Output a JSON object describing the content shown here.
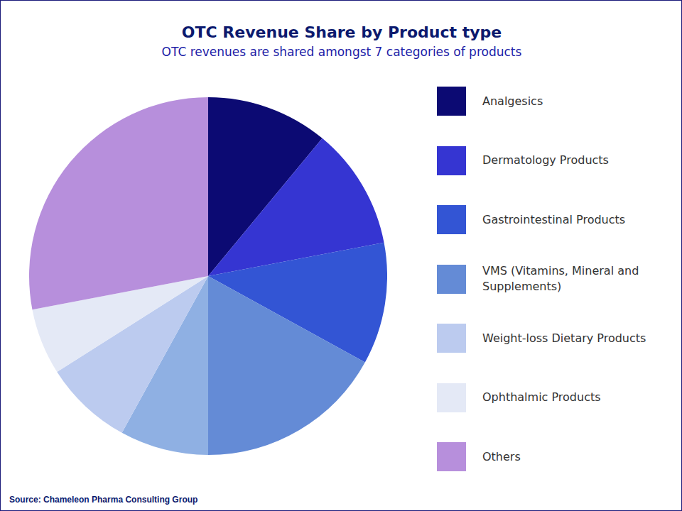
{
  "chart_data": {
    "type": "pie",
    "title": "OTC Revenue Share by Product type",
    "subtitle": "OTC revenues are shared amongst 7 categories of products",
    "source": "Source:  Chameleon Pharma Consulting Group",
    "categories": [
      "Analgesics",
      "Dermatology Products",
      "Gastrointestinal Products",
      "VMS (Vitamins, Mineral and Supplements)",
      null,
      "Weight-loss Dietary Products",
      "Ophthalmic Products",
      "Others"
    ],
    "values": [
      11,
      11,
      11,
      17,
      8,
      8,
      6,
      28
    ],
    "colors": [
      "#0c0a73",
      "#3535d2",
      "#3355d4",
      "#648bd6",
      "#8fb0e3",
      "#bccbef",
      "#e4e9f6",
      "#b78fdc"
    ],
    "legend": "right"
  }
}
